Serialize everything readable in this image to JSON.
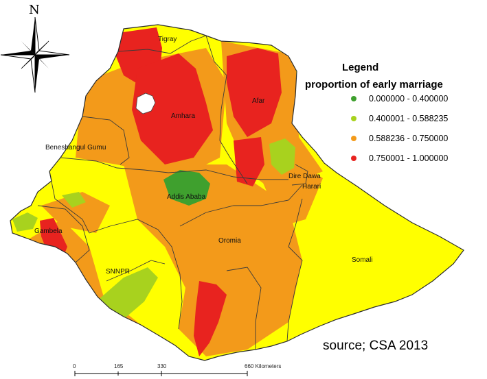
{
  "north_label": "N",
  "legend": {
    "title": "Legend",
    "subtitle": "proportion of early marriage",
    "classes": [
      {
        "label": "0.000000 - 0.400000",
        "color": "#3fa02e"
      },
      {
        "label": "0.400001 - 0.588235",
        "color": "#a8d21e"
      },
      {
        "label": "0.588236 - 0.750000",
        "color": "#f39a1a"
      },
      {
        "label": "0.750001 - 1.000000",
        "color": "#e8231f"
      }
    ]
  },
  "base_color": "#ffff00",
  "regions": [
    {
      "name": "Tigray"
    },
    {
      "name": "Afar"
    },
    {
      "name": "Amhara"
    },
    {
      "name": "Beneshangul Gumu"
    },
    {
      "name": "Dire Dawa"
    },
    {
      "name": "Harari"
    },
    {
      "name": "Addis Ababa"
    },
    {
      "name": "Gambela"
    },
    {
      "name": "Oromia"
    },
    {
      "name": "Somali"
    },
    {
      "name": "SNNPR"
    }
  ],
  "source": "source; CSA 2013",
  "scale_bar": {
    "ticks": [
      "0",
      "165",
      "330",
      "660 Kilometers"
    ]
  }
}
